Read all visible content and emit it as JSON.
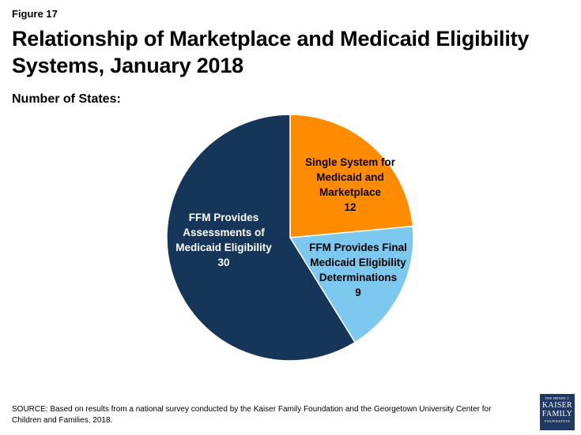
{
  "figure_label": "Figure 17",
  "title": "Relationship of Marketplace and Medicaid Eligibility Systems, January 2018",
  "subtitle": "Number of States:",
  "source": "SOURCE: Based on results from a national survey conducted by the Kaiser Family Foundation and the Georgetown University Center for Children and Families, 2018.",
  "logo": {
    "line1": "THE HENRY J.",
    "line2": "KAISER",
    "line3": "FAMILY",
    "line4": "FOUNDATION"
  },
  "chart_data": {
    "type": "pie",
    "title": "Relationship of Marketplace and Medicaid Eligibility Systems, January 2018",
    "start_angle_deg": 0,
    "direction": "clockwise",
    "slices": [
      {
        "name": "Single System for Medicaid and Marketplace",
        "value": 12,
        "color": "#ff8c00",
        "label_lines": [
          "Single System for",
          "Medicaid and",
          "Marketplace",
          "12"
        ]
      },
      {
        "name": "FFM Provides Final Medicaid Eligibility Determinations",
        "value": 9,
        "color": "#7cc8ee",
        "label_lines": [
          "FFM Provides Final",
          "Medicaid Eligibility",
          "Determinations",
          "9"
        ]
      },
      {
        "name": "FFM Provides Assessments of Medicaid Eligibility",
        "value": 30,
        "color": "#163659",
        "label_lines": [
          "FFM Provides",
          "Assessments of",
          "Medicaid Eligibility",
          "30"
        ]
      }
    ],
    "label_colors": [
      "#000000",
      "#000000",
      "#ffffff"
    ],
    "slice_border_color": "#ffffff"
  }
}
